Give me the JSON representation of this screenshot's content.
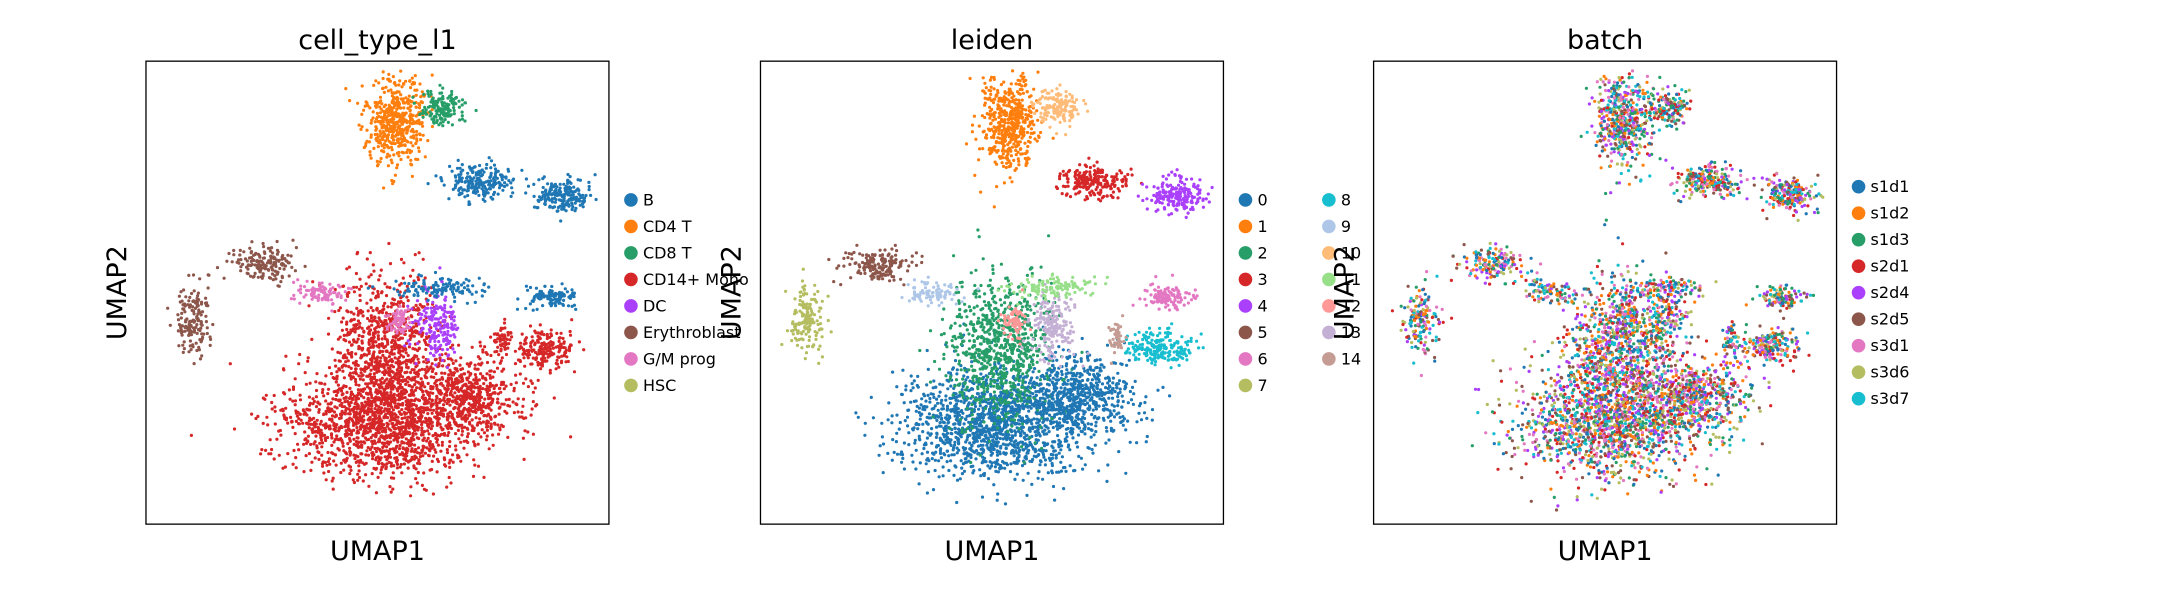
{
  "chart_data": [
    {
      "type": "scatter",
      "title": "cell_type_l1",
      "xlabel": "UMAP1",
      "ylabel": "UMAP2",
      "grid": false,
      "axis_ticks": false,
      "legend_placement": "right",
      "legend_columns": 1,
      "series": [
        {
          "name": "B",
          "color": "#1f77b4"
        },
        {
          "name": "CD4 T",
          "color": "#ff7f0e"
        },
        {
          "name": "CD8 T",
          "color": "#279e68"
        },
        {
          "name": "CD14+ Mono",
          "color": "#d62728"
        },
        {
          "name": "DC",
          "color": "#aa40fc"
        },
        {
          "name": "Erythroblast",
          "color": "#8c564b"
        },
        {
          "name": "G/M prog",
          "color": "#e377c2"
        },
        {
          "name": "HSC",
          "color": "#b5bd61"
        }
      ]
    },
    {
      "type": "scatter",
      "title": "leiden",
      "xlabel": "UMAP1",
      "ylabel": "UMAP2",
      "grid": false,
      "axis_ticks": false,
      "legend_placement": "right",
      "legend_columns": 2,
      "series": [
        {
          "name": "0",
          "color": "#1f77b4"
        },
        {
          "name": "1",
          "color": "#ff7f0e"
        },
        {
          "name": "2",
          "color": "#279e68"
        },
        {
          "name": "3",
          "color": "#d62728"
        },
        {
          "name": "4",
          "color": "#aa40fc"
        },
        {
          "name": "5",
          "color": "#8c564b"
        },
        {
          "name": "6",
          "color": "#e377c2"
        },
        {
          "name": "7",
          "color": "#b5bd61"
        },
        {
          "name": "8",
          "color": "#17becf"
        },
        {
          "name": "9",
          "color": "#aec7e8"
        },
        {
          "name": "10",
          "color": "#ffbb78"
        },
        {
          "name": "11",
          "color": "#98df8a"
        },
        {
          "name": "12",
          "color": "#ff9896"
        },
        {
          "name": "13",
          "color": "#c5b0d5"
        },
        {
          "name": "14",
          "color": "#c49c94"
        }
      ]
    },
    {
      "type": "scatter",
      "title": "batch",
      "xlabel": "UMAP1",
      "ylabel": "UMAP2",
      "grid": false,
      "axis_ticks": false,
      "legend_placement": "right",
      "legend_columns": 1,
      "series": [
        {
          "name": "s1d1",
          "color": "#1f77b4"
        },
        {
          "name": "s1d2",
          "color": "#ff7f0e"
        },
        {
          "name": "s1d3",
          "color": "#279e68"
        },
        {
          "name": "s2d1",
          "color": "#d62728"
        },
        {
          "name": "s2d4",
          "color": "#aa40fc"
        },
        {
          "name": "s2d5",
          "color": "#8c564b"
        },
        {
          "name": "s3d1",
          "color": "#e377c2"
        },
        {
          "name": "s3d6",
          "color": "#b5bd61"
        },
        {
          "name": "s3d7",
          "color": "#17becf"
        }
      ]
    }
  ]
}
